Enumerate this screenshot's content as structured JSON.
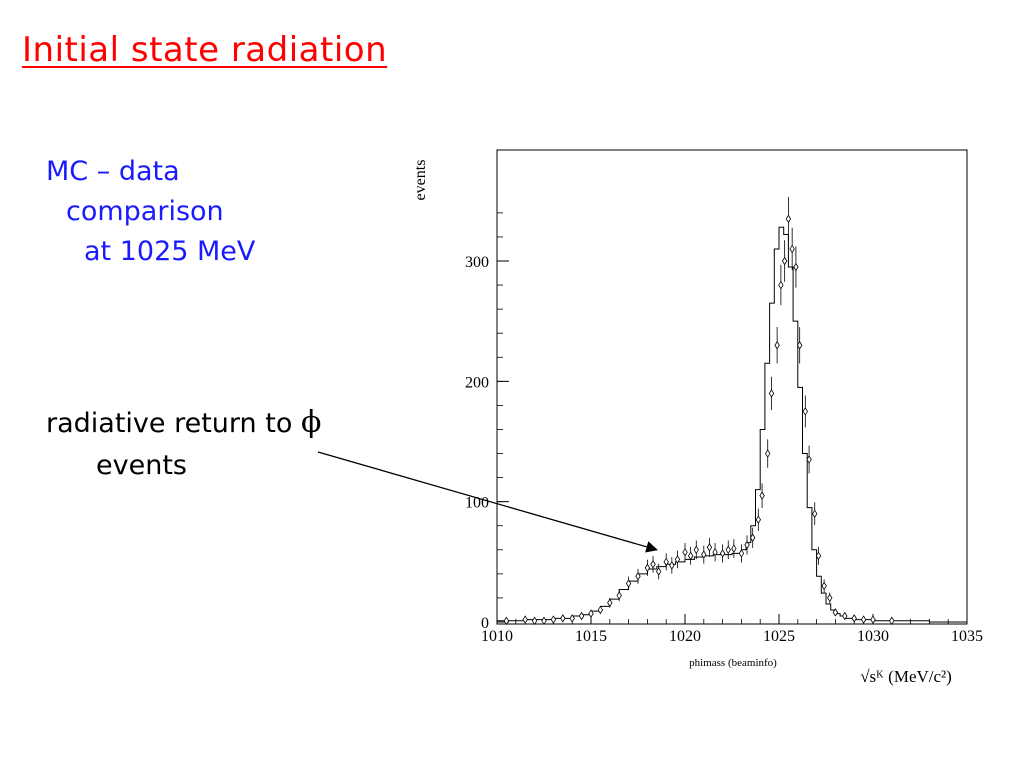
{
  "slide": {
    "title": "Initial state radiation",
    "mc_line1": "MC – data",
    "mc_line2": "comparison",
    "mc_line3": "at 1025 MeV",
    "radiative_line1": "radiative return to",
    "radiative_symbol": "ϕ",
    "radiative_line2": "events",
    "colors": {
      "title": "#ff0000",
      "mc_text": "#1a1aff",
      "body_text": "#000000"
    }
  },
  "chart_data": {
    "type": "scatter",
    "ylabel": "events",
    "xlabel": "√sᴷ (MeV/c²)",
    "subtitle": "phimass (beaminfo)",
    "xlim": [
      1010,
      1035
    ],
    "ylim": [
      0,
      370
    ],
    "x_ticks": [
      1010,
      1015,
      1020,
      1025,
      1030,
      1035
    ],
    "y_ticks": [
      0,
      100,
      200,
      300
    ],
    "annotation_arrow_target": {
      "x": 1018.5,
      "y": 60
    },
    "series": [
      {
        "style": "histogram",
        "x": [
          1010.0,
          1010.5,
          1011.0,
          1011.5,
          1012.0,
          1012.5,
          1013.0,
          1013.5,
          1014.0,
          1014.5,
          1015.0,
          1015.5,
          1016.0,
          1016.5,
          1017.0,
          1017.5,
          1018.0,
          1018.5,
          1019.0,
          1019.5,
          1020.0,
          1020.5,
          1021.0,
          1021.5,
          1022.0,
          1022.5,
          1023.0,
          1023.25,
          1023.5,
          1023.75,
          1024.0,
          1024.25,
          1024.5,
          1024.75,
          1025.0,
          1025.25,
          1025.5,
          1025.75,
          1026.0,
          1026.25,
          1026.5,
          1026.75,
          1027.0,
          1027.25,
          1027.5,
          1027.75,
          1028.0,
          1028.25,
          1028.5,
          1029.0,
          1029.5,
          1030.0,
          1030.5,
          1031.0,
          1032.0,
          1033.0,
          1034.0,
          1035.0
        ],
        "y": [
          1,
          1,
          1,
          2,
          2,
          2,
          3,
          3,
          5,
          6,
          9,
          13,
          19,
          27,
          34,
          40,
          44,
          46,
          48,
          50,
          52,
          54,
          55,
          56,
          56,
          57,
          60,
          66,
          80,
          110,
          160,
          215,
          265,
          310,
          328,
          322,
          295,
          250,
          195,
          140,
          95,
          60,
          38,
          24,
          15,
          10,
          7,
          5,
          3,
          2,
          2,
          1,
          1,
          1,
          1,
          0,
          0,
          0
        ]
      },
      {
        "style": "points",
        "x": [
          1010.5,
          1011.5,
          1012.0,
          1012.5,
          1013.0,
          1013.5,
          1014.0,
          1014.5,
          1015.0,
          1015.5,
          1016.0,
          1016.5,
          1017.0,
          1017.5,
          1018.0,
          1018.3,
          1018.6,
          1019.0,
          1019.3,
          1019.6,
          1020.0,
          1020.3,
          1020.6,
          1021.0,
          1021.3,
          1021.6,
          1022.0,
          1022.3,
          1022.6,
          1023.0,
          1023.3,
          1023.6,
          1023.9,
          1024.1,
          1024.4,
          1024.6,
          1024.9,
          1025.1,
          1025.3,
          1025.5,
          1025.7,
          1025.9,
          1026.1,
          1026.4,
          1026.6,
          1026.9,
          1027.1,
          1027.4,
          1027.7,
          1028.0,
          1028.5,
          1029.0,
          1029.5,
          1030.0,
          1031.0
        ],
        "y": [
          1,
          2,
          1,
          1,
          2,
          3,
          3,
          5,
          7,
          10,
          16,
          22,
          32,
          38,
          45,
          48,
          42,
          50,
          47,
          52,
          58,
          55,
          60,
          56,
          62,
          58,
          57,
          60,
          61,
          57,
          64,
          70,
          85,
          105,
          140,
          190,
          230,
          280,
          300,
          335,
          310,
          295,
          230,
          175,
          135,
          90,
          55,
          30,
          20,
          8,
          5,
          3,
          2,
          2,
          1
        ]
      }
    ]
  }
}
